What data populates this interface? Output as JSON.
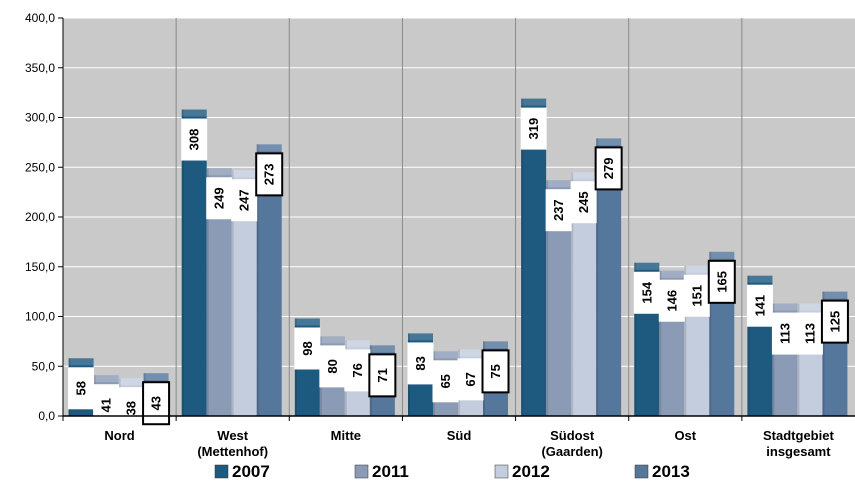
{
  "chart_data": {
    "type": "bar",
    "categories": [
      [
        "Nord"
      ],
      [
        "West",
        "(Mettenhof)"
      ],
      [
        "Mitte"
      ],
      [
        "Süd"
      ],
      [
        "Südost",
        "(Gaarden)"
      ],
      [
        "Ost"
      ],
      [
        "Stadtgebiet",
        "insgesamt"
      ]
    ],
    "series": [
      {
        "name": "2007",
        "values": [
          58,
          308,
          98,
          83,
          319,
          154,
          141
        ],
        "color": "#1e5a80",
        "outlined_labels": false
      },
      {
        "name": "2011",
        "values": [
          41,
          249,
          80,
          65,
          237,
          146,
          113
        ],
        "color": "#8b9bb5",
        "outlined_labels": false
      },
      {
        "name": "2012",
        "values": [
          38,
          247,
          76,
          67,
          245,
          151,
          113
        ],
        "color": "#c4cddd",
        "outlined_labels": false
      },
      {
        "name": "2013",
        "values": [
          43,
          273,
          71,
          75,
          279,
          165,
          125
        ],
        "color": "#56779c",
        "outlined_labels": true
      }
    ],
    "ylim": [
      0,
      400
    ],
    "yticks": [
      "0,0",
      "50,0",
      "100,0",
      "150,0",
      "200,0",
      "250,0",
      "300,0",
      "350,0",
      "400,0"
    ],
    "grid": true,
    "legend_position": "bottom",
    "plot_background": "#c9c9c9"
  }
}
